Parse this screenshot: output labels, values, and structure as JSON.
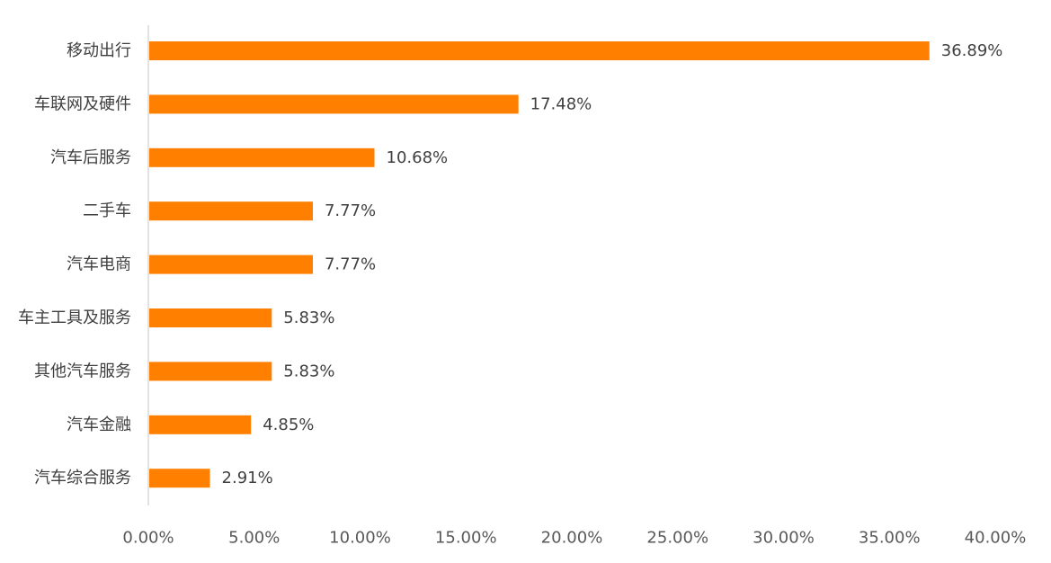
{
  "chart_data": {
    "type": "bar",
    "orientation": "horizontal",
    "title": "",
    "xlabel": "",
    "ylabel": "",
    "categories": [
      "移动出行",
      "车联网及硬件",
      "汽车后服务",
      "二手车",
      "汽车电商",
      "车主工具及服务",
      "其他汽车服务",
      "汽车金融",
      "汽车综合服务"
    ],
    "values": [
      36.89,
      17.48,
      10.68,
      7.77,
      7.77,
      5.83,
      5.83,
      4.85,
      2.91
    ],
    "value_labels": [
      "36.89%",
      "17.48%",
      "10.68%",
      "7.77%",
      "7.77%",
      "5.83%",
      "5.83%",
      "4.85%",
      "2.91%"
    ],
    "xlim": [
      0,
      40
    ],
    "x_ticks": [
      0,
      5,
      10,
      15,
      20,
      25,
      30,
      35,
      40
    ],
    "x_tick_labels": [
      "0.00%",
      "5.00%",
      "10.00%",
      "15.00%",
      "20.00%",
      "25.00%",
      "30.00%",
      "35.00%",
      "40.00%"
    ],
    "bar_color": "#FF8000",
    "grid": false,
    "legend": "none"
  }
}
